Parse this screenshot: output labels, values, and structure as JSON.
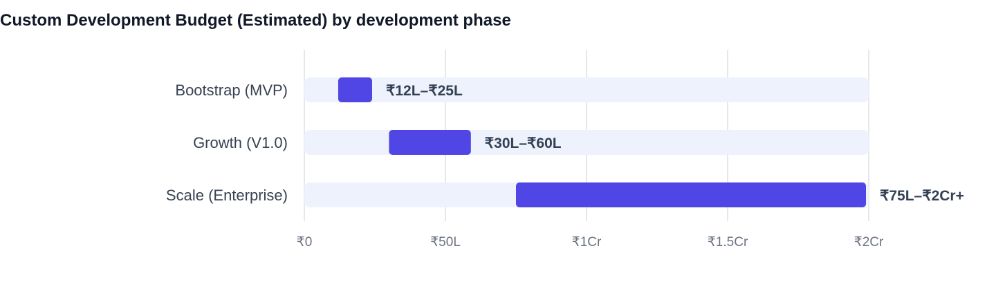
{
  "chart_data": {
    "type": "bar",
    "title": "Custom Development Budget (Estimated) by development phase",
    "xlabel": "",
    "ylabel": "",
    "unit": "₹ Lakh",
    "xlim": [
      0,
      200
    ],
    "grid": true,
    "categories": [
      "Bootstrap (MVP)",
      "Growth (V1.0)",
      "Scale (Enterprise)"
    ],
    "ranges": [
      {
        "low": 12,
        "high": 25,
        "label": "₹12L–₹25L"
      },
      {
        "low": 30,
        "high": 60,
        "label": "₹30L–₹60L"
      },
      {
        "low": 75,
        "high": 200,
        "label": "₹75L–₹2Cr+"
      }
    ],
    "ticks": [
      {
        "value": 0,
        "label": "₹0"
      },
      {
        "value": 50,
        "label": "₹50L"
      },
      {
        "value": 100,
        "label": "₹1Cr"
      },
      {
        "value": 150,
        "label": "₹1.5Cr"
      },
      {
        "value": 200,
        "label": "₹2Cr"
      }
    ],
    "colors": {
      "bar": "#5046e5",
      "track": "#eef2fc",
      "grid": "#e5e7eb"
    }
  }
}
